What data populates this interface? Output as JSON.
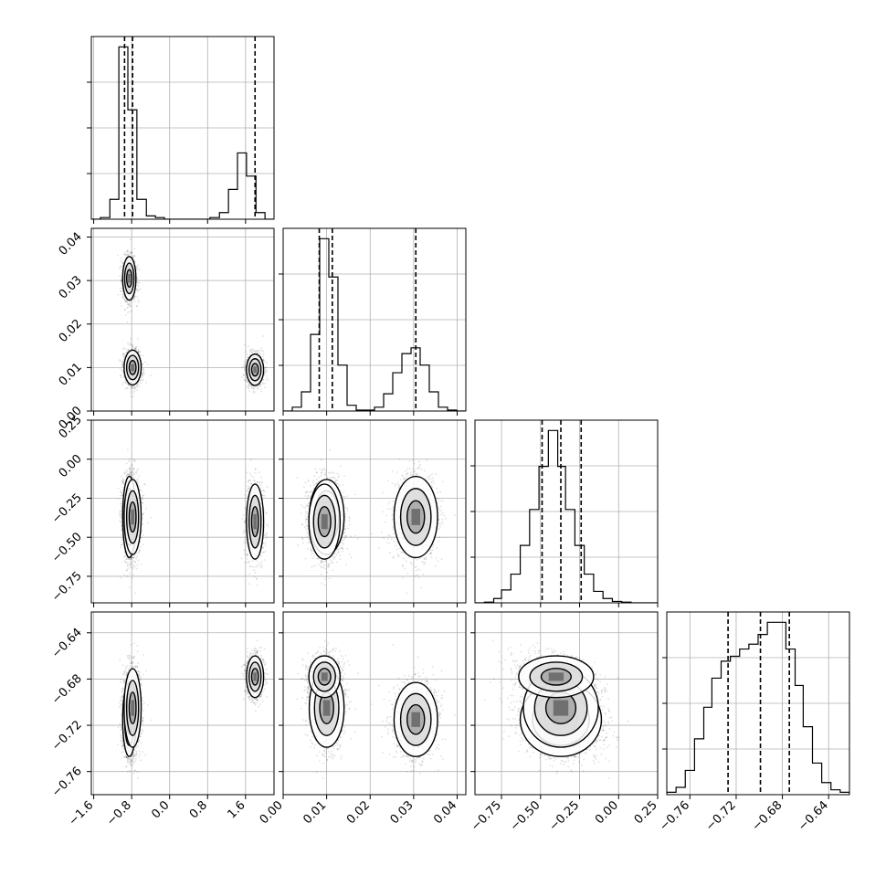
{
  "chart_data": {
    "type": "corner",
    "params": [
      {
        "id": "p1",
        "label": "",
        "ticks": [
          -1.6,
          -0.8,
          0.0,
          0.8,
          1.6
        ],
        "tick_labels": [
          "-1.6",
          "-0.8",
          "0.0",
          "0.8",
          "1.6"
        ],
        "lim": [
          -1.65,
          2.2
        ],
        "quantiles": [
          -0.95,
          -0.78,
          1.8
        ],
        "hist": {
          "edges": [
            -1.65,
            -1.46,
            -1.26,
            -1.07,
            -0.88,
            -0.69,
            -0.49,
            -0.3,
            -0.11,
            0.08,
            0.28,
            0.47,
            0.66,
            0.85,
            1.05,
            1.24,
            1.43,
            1.62,
            1.82,
            2.01,
            2.2
          ],
          "counts": [
            0,
            0.05,
            0.6,
            5.2,
            3.3,
            0.6,
            0.1,
            0.05,
            0,
            0,
            0,
            0,
            0,
            0.05,
            0.2,
            0.9,
            2.0,
            1.3,
            0.2,
            0
          ]
        }
      },
      {
        "id": "p2",
        "label": "",
        "ticks": [
          0.0,
          0.01,
          0.02,
          0.03,
          0.04
        ],
        "tick_labels": [
          "0.00",
          "0.01",
          "0.02",
          "0.03",
          "0.04"
        ],
        "lim": [
          0.0,
          0.042
        ],
        "quantiles": [
          0.0083,
          0.0113,
          0.0305
        ],
        "hist": {
          "edges": [
            0.0,
            0.0021,
            0.0042,
            0.0063,
            0.0084,
            0.0105,
            0.0126,
            0.0147,
            0.0168,
            0.0189,
            0.021,
            0.0231,
            0.0252,
            0.0273,
            0.0294,
            0.0315,
            0.0336,
            0.0357,
            0.0378,
            0.0399,
            0.042
          ],
          "counts": [
            0,
            0.2,
            1.0,
            4.0,
            9.0,
            7.0,
            2.4,
            0.3,
            0.05,
            0.05,
            0.2,
            0.9,
            2.0,
            3.0,
            3.3,
            2.4,
            1.0,
            0.2,
            0.05,
            0
          ]
        }
      },
      {
        "id": "p3",
        "label": "",
        "ticks": [
          -0.75,
          -0.5,
          -0.25,
          0.0,
          0.25
        ],
        "tick_labels": [
          "-0.75",
          "-0.50",
          "-0.25",
          "0.00",
          "0.25"
        ],
        "lim": [
          -0.92,
          0.25
        ],
        "quantiles": [
          -0.49,
          -0.37,
          -0.24
        ],
        "hist": {
          "edges": [
            -0.92,
            -0.86,
            -0.8,
            -0.75,
            -0.69,
            -0.63,
            -0.57,
            -0.51,
            -0.45,
            -0.39,
            -0.34,
            -0.28,
            -0.22,
            -0.16,
            -0.1,
            -0.04,
            0.02,
            0.08,
            0.13,
            0.19,
            0.25
          ],
          "counts": [
            0,
            0.05,
            0.3,
            0.9,
            2.0,
            4.0,
            6.5,
            9.5,
            12.0,
            9.5,
            6.5,
            4.0,
            2.0,
            0.8,
            0.3,
            0.1,
            0.05,
            0,
            0,
            0
          ]
        }
      },
      {
        "id": "p4",
        "label": "",
        "ticks": [
          -0.76,
          -0.72,
          -0.68,
          -0.64
        ],
        "tick_labels": [
          "-0.76",
          "-0.72",
          "-0.68",
          "-0.64"
        ],
        "lim": [
          -0.78,
          -0.622
        ],
        "quantiles": [
          -0.727,
          -0.699,
          -0.674
        ],
        "hist": {
          "edges": [
            -0.78,
            -0.772,
            -0.764,
            -0.756,
            -0.748,
            -0.741,
            -0.733,
            -0.725,
            -0.717,
            -0.709,
            -0.701,
            -0.693,
            -0.685,
            -0.677,
            -0.669,
            -0.662,
            -0.654,
            -0.646,
            -0.638,
            -0.63,
            -0.622
          ],
          "counts": [
            0.1,
            0.3,
            1.0,
            2.3,
            3.6,
            4.8,
            5.5,
            5.7,
            6.0,
            6.2,
            6.6,
            7.1,
            7.1,
            6.0,
            4.5,
            2.8,
            1.3,
            0.5,
            0.2,
            0.1
          ]
        }
      }
    ],
    "clusters": [
      {
        "name": "",
        "weight": 0.36,
        "mean": [
          -0.85,
          0.0305,
          -0.37,
          -0.715
        ],
        "sd": [
          0.07,
          0.0025,
          0.13,
          0.016
        ]
      },
      {
        "name": "",
        "weight": 0.34,
        "mean": [
          -0.78,
          0.01,
          -0.37,
          -0.705
        ],
        "sd": [
          0.09,
          0.002,
          0.12,
          0.017
        ]
      },
      {
        "name": "",
        "weight": 0.3,
        "mean": [
          1.8,
          0.0095,
          -0.4,
          -0.678
        ],
        "sd": [
          0.09,
          0.0018,
          0.12,
          0.009
        ]
      }
    ],
    "xlabel": "",
    "ylabel": "",
    "title": "",
    "grid": true,
    "legend": "none",
    "colors": {
      "axes": "#000000",
      "grid": "#b0b0b0",
      "points": "#000000",
      "density": "#000000"
    }
  }
}
